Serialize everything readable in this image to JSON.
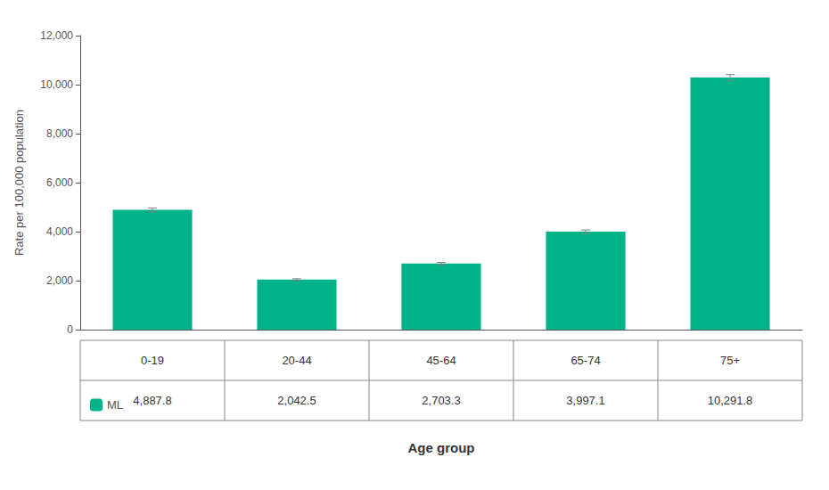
{
  "chart_data": {
    "type": "bar",
    "categories": [
      "0-19",
      "20-44",
      "45-64",
      "65-74",
      "75+"
    ],
    "series": [
      {
        "name": "ML",
        "color": "#00B388",
        "values": [
          4887.8,
          2042.5,
          2703.3,
          3997.1,
          10291.8
        ],
        "value_labels": [
          "4,887.8",
          "2,042.5",
          "2,703.3",
          "3,997.1",
          "10,291.8"
        ],
        "errors": [
          80,
          35,
          40,
          70,
          120
        ]
      }
    ],
    "xlabel": "Age group",
    "ylabel": "Rate per 100,000 population",
    "ylim": [
      0,
      12000
    ],
    "yticks": [
      0,
      {
        "value": 2000,
        "label": "2,000"
      },
      {
        "value": 4000,
        "label": "4,000"
      },
      {
        "value": 6000,
        "label": "6,000"
      },
      {
        "value": 8000,
        "label": "8,000"
      },
      {
        "value": 10000,
        "label": "10,000"
      },
      {
        "value": 12000,
        "label": "12,000"
      }
    ],
    "grid": false
  }
}
